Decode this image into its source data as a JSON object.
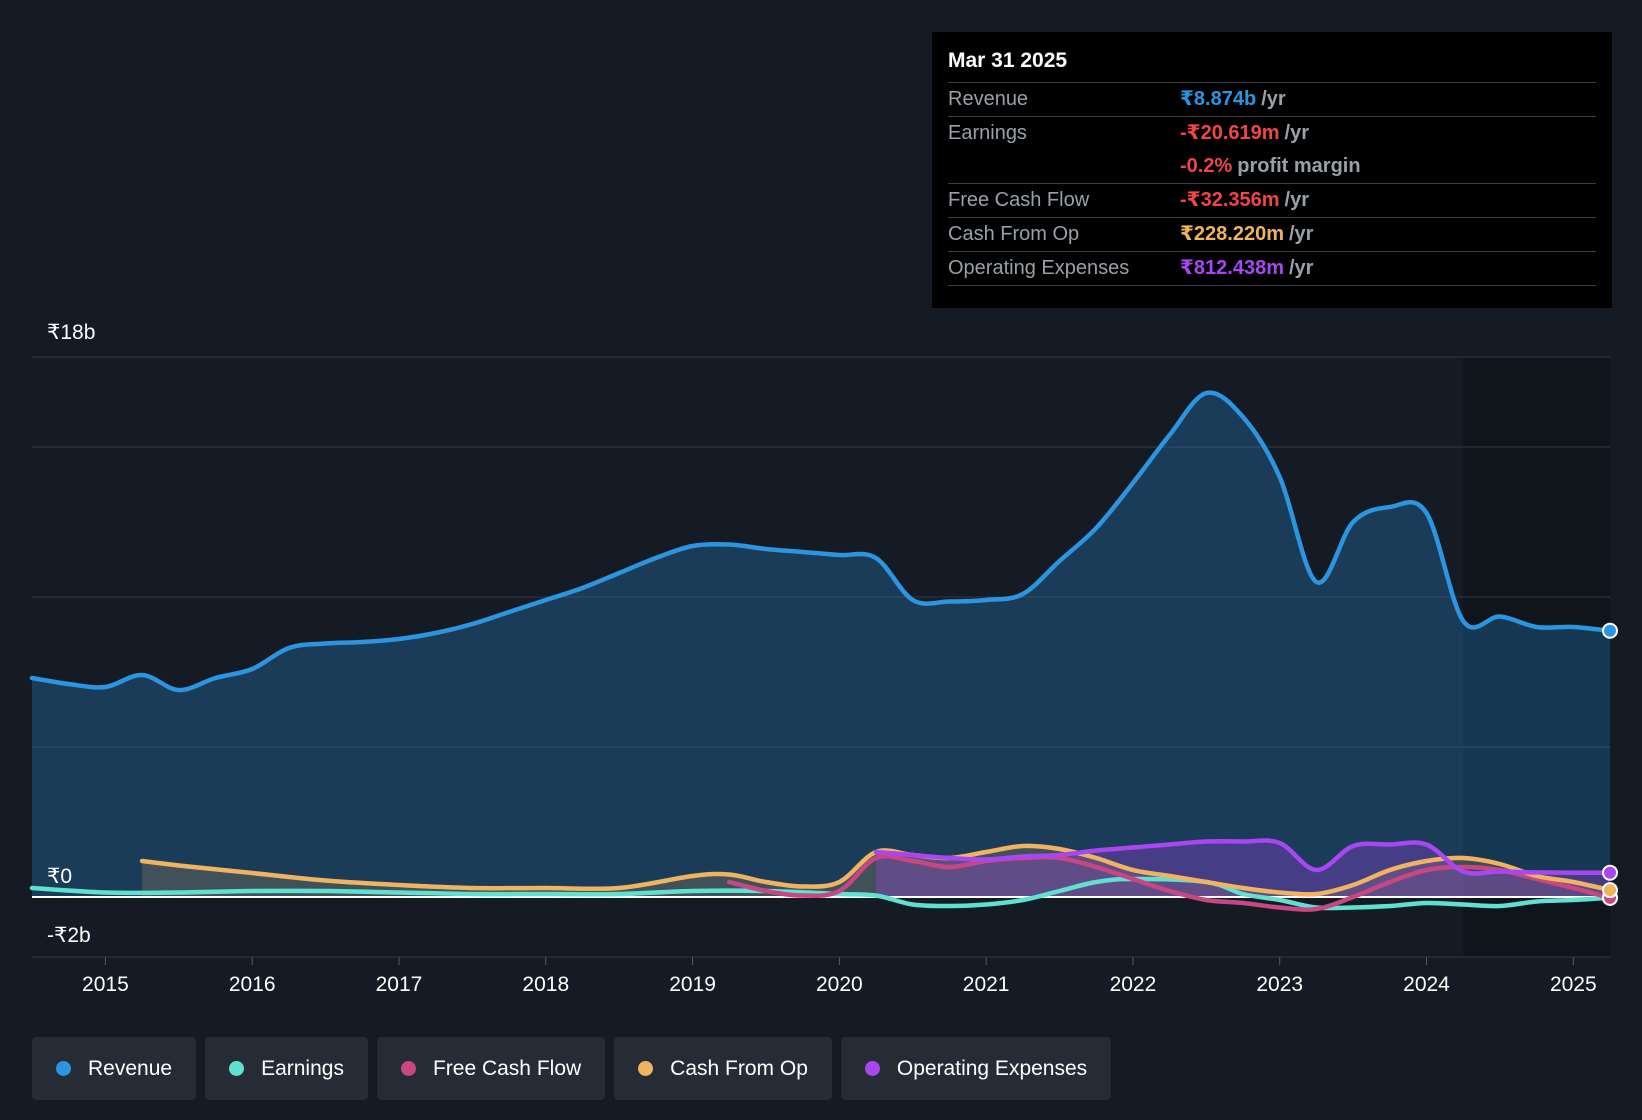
{
  "tooltip": {
    "date": "Mar 31 2025",
    "rows": [
      {
        "label": "Revenue",
        "value": "₹8.874b",
        "unit": "/yr",
        "color": "#2b95e0"
      },
      {
        "label": "Earnings",
        "value": "-₹20.619m",
        "unit": "/yr",
        "color": "#f0454a"
      },
      {
        "label": "",
        "value": "-0.2%",
        "unit": "profit margin",
        "color": "#f0454a"
      },
      {
        "label": "Free Cash Flow",
        "value": "-₹32.356m",
        "unit": "/yr",
        "color": "#f0454a"
      },
      {
        "label": "Cash From Op",
        "value": "₹228.220m",
        "unit": "/yr",
        "color": "#f0b461"
      },
      {
        "label": "Operating Expenses",
        "value": "₹812.438m",
        "unit": "/yr",
        "color": "#a847f2"
      }
    ]
  },
  "legend": [
    {
      "label": "Revenue",
      "color": "#2b95e0"
    },
    {
      "label": "Earnings",
      "color": "#5fe0d0"
    },
    {
      "label": "Free Cash Flow",
      "color": "#c84782"
    },
    {
      "label": "Cash From Op",
      "color": "#f0b461"
    },
    {
      "label": "Operating Expenses",
      "color": "#a847f2"
    }
  ],
  "chart_data": {
    "type": "area",
    "title": "",
    "xlabel": "",
    "ylabel": "",
    "y_unit": "₹b",
    "ylim": [
      -2,
      18
    ],
    "y_tick_labels": [
      {
        "value": 18,
        "label": "₹18b"
      },
      {
        "value": 0,
        "label": "₹0"
      },
      {
        "value": -2,
        "label": "-₹2b"
      }
    ],
    "y_gridlines": [
      18,
      15,
      10,
      5,
      0,
      -2
    ],
    "xlim": [
      2014.5,
      2025.25
    ],
    "x_ticks": [
      2015,
      2016,
      2017,
      2018,
      2019,
      2020,
      2021,
      2022,
      2023,
      2024,
      2025
    ],
    "forecast_shade_start": 2024.25,
    "series": [
      {
        "name": "Revenue",
        "color": "#2b95e0",
        "fill": true,
        "x": [
          2014.5,
          2014.75,
          2015,
          2015.25,
          2015.5,
          2015.75,
          2016,
          2016.25,
          2016.5,
          2016.75,
          2017,
          2017.25,
          2017.5,
          2017.75,
          2018,
          2018.25,
          2018.5,
          2018.75,
          2019,
          2019.25,
          2019.5,
          2019.75,
          2020,
          2020.25,
          2020.5,
          2020.75,
          2021,
          2021.25,
          2021.5,
          2021.75,
          2022,
          2022.25,
          2022.5,
          2022.75,
          2023,
          2023.25,
          2023.5,
          2023.75,
          2024,
          2024.25,
          2024.5,
          2024.75,
          2025,
          2025.25
        ],
        "y": [
          7.3,
          7.1,
          7.0,
          7.4,
          6.9,
          7.3,
          7.6,
          8.3,
          8.45,
          8.5,
          8.6,
          8.8,
          9.1,
          9.5,
          9.9,
          10.3,
          10.8,
          11.3,
          11.7,
          11.75,
          11.6,
          11.5,
          11.4,
          11.3,
          9.9,
          9.85,
          9.9,
          10.1,
          11.2,
          12.3,
          13.8,
          15.4,
          16.8,
          16.0,
          14.0,
          10.5,
          12.5,
          13.0,
          12.8,
          9.2,
          9.35,
          9.0,
          9.0,
          8.874
        ]
      },
      {
        "name": "Earnings",
        "color": "#5fe0d0",
        "fill": false,
        "x": [
          2014.5,
          2015,
          2015.5,
          2016,
          2016.5,
          2017,
          2017.5,
          2018,
          2018.5,
          2019,
          2019.5,
          2020,
          2020.25,
          2020.5,
          2020.75,
          2021,
          2021.25,
          2021.5,
          2021.75,
          2022,
          2022.5,
          2022.75,
          2023,
          2023.25,
          2023.5,
          2023.75,
          2024,
          2024.25,
          2024.5,
          2024.75,
          2025,
          2025.25
        ],
        "y": [
          0.3,
          0.15,
          0.15,
          0.2,
          0.2,
          0.15,
          0.1,
          0.1,
          0.1,
          0.2,
          0.2,
          0.1,
          0.05,
          -0.25,
          -0.3,
          -0.25,
          -0.1,
          0.2,
          0.5,
          0.6,
          0.5,
          0.1,
          -0.1,
          -0.35,
          -0.35,
          -0.3,
          -0.2,
          -0.25,
          -0.3,
          -0.15,
          -0.1,
          -0.02
        ]
      },
      {
        "name": "Free Cash Flow",
        "color": "#c84782",
        "fill": false,
        "x": [
          2019.25,
          2019.5,
          2019.75,
          2020,
          2020.25,
          2020.5,
          2020.75,
          2021,
          2021.25,
          2021.5,
          2021.75,
          2022,
          2022.25,
          2022.5,
          2022.75,
          2023,
          2023.25,
          2023.5,
          2023.75,
          2024,
          2024.25,
          2024.5,
          2024.75,
          2025,
          2025.25
        ],
        "y": [
          0.5,
          0.2,
          0.05,
          0.2,
          1.3,
          1.2,
          1.0,
          1.2,
          1.3,
          1.3,
          1.0,
          0.6,
          0.2,
          -0.1,
          -0.2,
          -0.35,
          -0.4,
          0.0,
          0.5,
          0.9,
          1.0,
          0.9,
          0.6,
          0.3,
          -0.03
        ]
      },
      {
        "name": "Cash From Op",
        "color": "#f0b461",
        "fill": true,
        "x": [
          2015.25,
          2015.5,
          2016,
          2016.5,
          2017,
          2017.5,
          2018,
          2018.5,
          2019,
          2019.25,
          2019.5,
          2019.75,
          2020,
          2020.25,
          2020.5,
          2020.75,
          2021,
          2021.25,
          2021.5,
          2021.75,
          2022,
          2022.25,
          2022.5,
          2022.75,
          2023,
          2023.25,
          2023.5,
          2023.75,
          2024,
          2024.25,
          2024.5,
          2024.75,
          2025,
          2025.25
        ],
        "y": [
          1.2,
          1.05,
          0.8,
          0.55,
          0.4,
          0.3,
          0.3,
          0.3,
          0.7,
          0.75,
          0.5,
          0.35,
          0.5,
          1.5,
          1.4,
          1.3,
          1.5,
          1.7,
          1.6,
          1.3,
          0.9,
          0.7,
          0.5,
          0.3,
          0.15,
          0.1,
          0.4,
          0.9,
          1.2,
          1.3,
          1.1,
          0.7,
          0.5,
          0.23
        ]
      },
      {
        "name": "Operating Expenses",
        "color": "#a847f2",
        "fill": true,
        "x": [
          2020.25,
          2020.5,
          2020.75,
          2021,
          2021.25,
          2021.5,
          2021.75,
          2022,
          2022.25,
          2022.5,
          2022.75,
          2023,
          2023.25,
          2023.5,
          2023.75,
          2024,
          2024.25,
          2024.5,
          2024.75,
          2025,
          2025.25
        ],
        "y": [
          1.5,
          1.4,
          1.3,
          1.25,
          1.35,
          1.4,
          1.55,
          1.65,
          1.75,
          1.85,
          1.85,
          1.8,
          0.9,
          1.7,
          1.75,
          1.75,
          0.85,
          0.85,
          0.82,
          0.81,
          0.81
        ]
      }
    ]
  }
}
